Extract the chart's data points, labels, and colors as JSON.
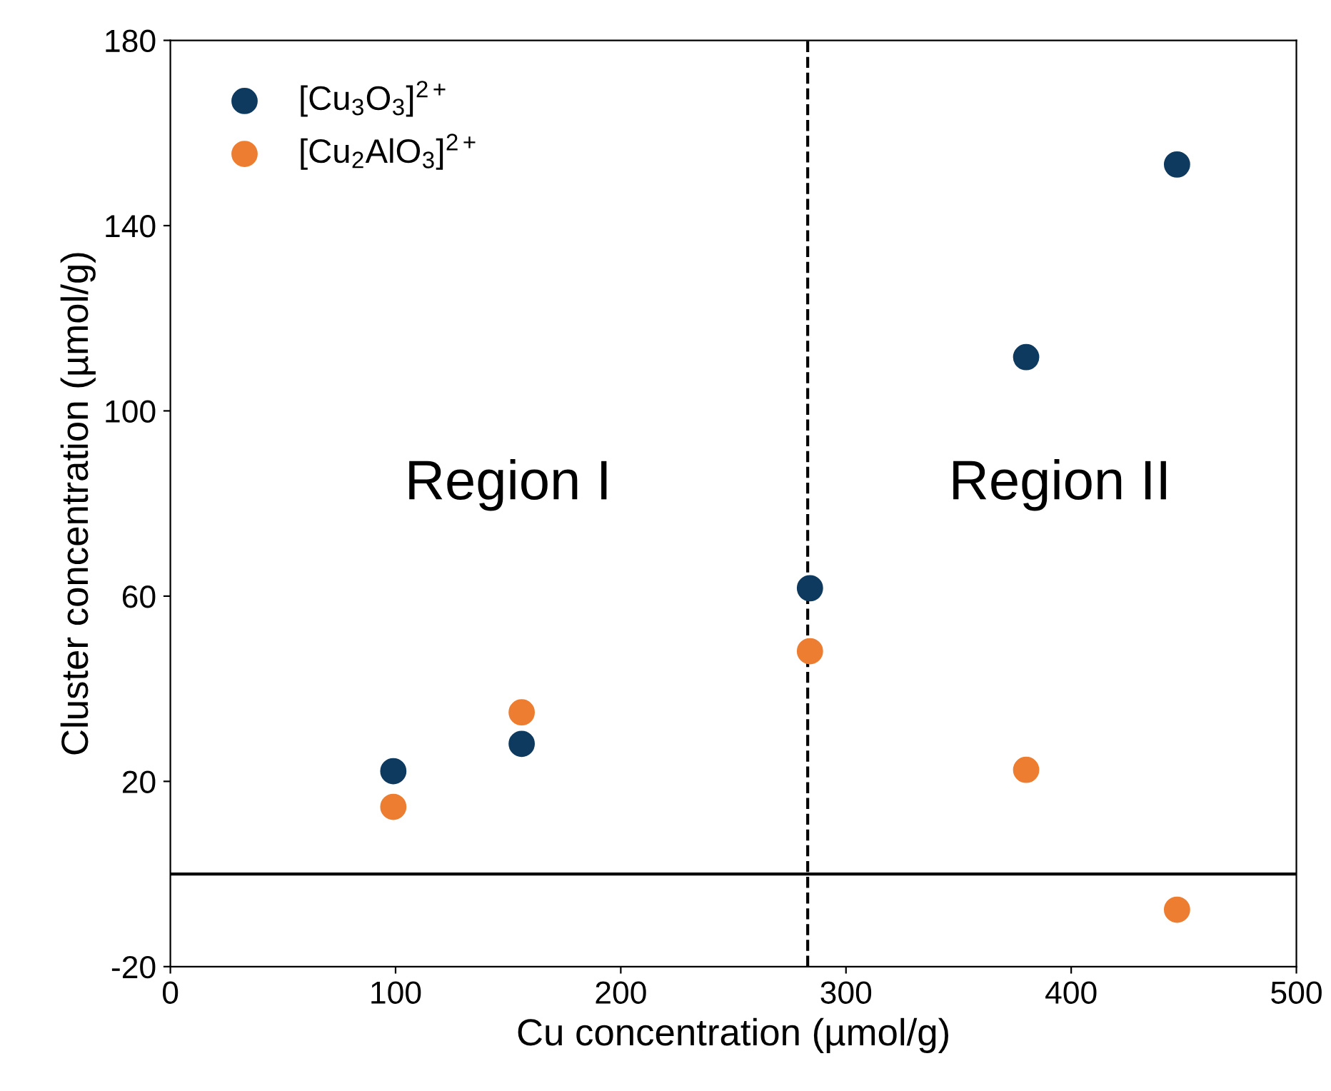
{
  "chart_data": {
    "type": "scatter",
    "xlabel": "Cu concentration (µmol/g)",
    "ylabel": "Cluster concentration (µmol/g)",
    "series": [
      {
        "name": "[Cu$_{3}$O$_{3}$]$^{2+}$",
        "color": "#0e3a5f",
        "x": [
          99,
          156,
          284,
          380,
          447
        ],
        "values": [
          22.2,
          28.1,
          61.7,
          111.6,
          153.2
        ]
      },
      {
        "name": "[Cu$_{2}$AlO$_{3}$]$^{2+}$",
        "color": "#ed7d31",
        "x": [
          99,
          156,
          284,
          380,
          447
        ],
        "values": [
          14.5,
          34.9,
          48.1,
          22.5,
          -7.7
        ]
      }
    ],
    "xlim": [
      0,
      500
    ],
    "xticks": [
      0,
      100,
      200,
      300,
      400,
      500
    ],
    "ylim": [
      -20,
      180
    ],
    "yticks": [
      -20,
      20,
      60,
      100,
      140,
      180
    ],
    "ref_lines": [
      {
        "axis": "x",
        "value": 283,
        "line_style": "dashed",
        "color": "#000000"
      },
      {
        "axis": "y",
        "value": 0,
        "line_style": "solid",
        "color": "#000000"
      }
    ],
    "annotations": [
      "Region I",
      "Region II"
    ],
    "marker": "circle",
    "legend": "top left",
    "grid": false
  }
}
